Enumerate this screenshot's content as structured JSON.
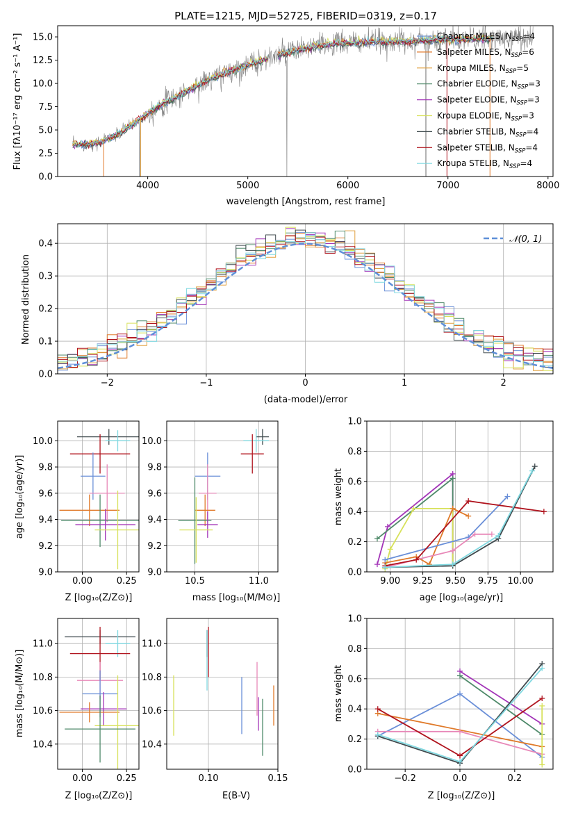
{
  "colors": {
    "chabrier_miles": "#6a8fd8",
    "salpeter_miles": "#e07a2a",
    "kroupa_miles": "#e0a040",
    "chabrier_elodie": "#4f8a6a",
    "salpeter_elodie": "#a335b8",
    "kroupa_elodie": "#d7e15a",
    "chabrier_stelib": "#404b4f",
    "salpeter_stelib": "#b0141e",
    "kroupa_stelib": "#7fd8e0",
    "pink": "#e888b8",
    "data_spectrum": "#808080",
    "normal_curve": "#5e8fd8",
    "grid": "#b0b0b0"
  },
  "series": [
    {
      "key": "chabrier_miles",
      "label": "Chabrier MILES, N",
      "sub": "SSP",
      "suffix": "=4",
      "color": "#6a8fd8"
    },
    {
      "key": "salpeter_miles",
      "label": "Salpeter MILES, N",
      "sub": "SSP",
      "suffix": "=6",
      "color": "#e07a2a"
    },
    {
      "key": "kroupa_miles",
      "label": "Kroupa MILES, N",
      "sub": "SSP",
      "suffix": "=5",
      "color": "#e0a040"
    },
    {
      "key": "chabrier_elodie",
      "label": "Chabrier ELODIE, N",
      "sub": "SSP",
      "suffix": "=3",
      "color": "#4f8a6a"
    },
    {
      "key": "salpeter_elodie",
      "label": "Salpeter ELODIE, N",
      "sub": "SSP",
      "suffix": "=3",
      "color": "#a335b8"
    },
    {
      "key": "kroupa_elodie",
      "label": "Kroupa ELODIE, N",
      "sub": "SSP",
      "suffix": "=3",
      "color": "#d7e15a"
    },
    {
      "key": "chabrier_stelib",
      "label": "Chabrier STELIB, N",
      "sub": "SSP",
      "suffix": "=4",
      "color": "#404b4f"
    },
    {
      "key": "salpeter_stelib",
      "label": "Salpeter STELIB, N",
      "sub": "SSP",
      "suffix": "=4",
      "color": "#b0141e"
    },
    {
      "key": "kroupa_stelib",
      "label": "Kroupa STELIB, N",
      "sub": "SSP",
      "suffix": "=4",
      "color": "#7fd8e0"
    }
  ],
  "chart_data": [
    {
      "id": "spectrum",
      "type": "line",
      "title": "PLATE=1215, MJD=52725, FIBERID=0319, z=0.17",
      "xlabel": "wavelength [Angstrom, rest frame]",
      "ylabel": "Flux [fλ10⁻¹⁷ erg cm⁻² s⁻¹ A⁻¹]",
      "xlim": [
        3100,
        8050
      ],
      "ylim": [
        0,
        16.2
      ],
      "xticks": [
        4000,
        5000,
        6000,
        7000,
        8000
      ],
      "yticks": [
        0.0,
        2.5,
        5.0,
        7.5,
        10.0,
        12.5,
        15.0
      ],
      "continuum": {
        "x": [
          3250,
          3500,
          3700,
          3900,
          4100,
          4300,
          4500,
          4700,
          4900,
          5100,
          5300,
          5500,
          5700,
          5900,
          6100,
          6300,
          6500,
          6700,
          6900,
          7100,
          7300,
          7500,
          7700,
          7850
        ],
        "y": [
          3.4,
          3.6,
          4.5,
          6.0,
          7.5,
          8.6,
          9.8,
          10.8,
          11.6,
          12.3,
          13.0,
          13.6,
          14.0,
          14.3,
          14.4,
          14.5,
          14.5,
          14.6,
          14.7,
          14.7,
          14.8,
          14.8,
          14.9,
          14.9
        ]
      },
      "legend": "upper-right"
    },
    {
      "id": "residuals",
      "type": "histogram",
      "xlabel": "(data-model)/error",
      "ylabel": "Normed distribution",
      "xlim": [
        -2.5,
        2.5
      ],
      "ylim": [
        0,
        0.46
      ],
      "xticks": [
        -2,
        -1,
        0,
        1,
        2
      ],
      "yticks": [
        0.0,
        0.1,
        0.2,
        0.3,
        0.4
      ],
      "normal_label": "𝒩(0, 1)",
      "legend": "upper-right"
    },
    {
      "id": "age_vs_Z",
      "type": "errorbar",
      "xlabel": "Z [log₁₀(Z/Z⊙)]",
      "ylabel": "age  [log₁₀(age/yr)]",
      "xlim": [
        -0.14,
        0.32
      ],
      "ylim": [
        9.0,
        10.15
      ],
      "xticks": [
        0.0,
        0.25
      ],
      "yticks": [
        9.0,
        9.2,
        9.4,
        9.6,
        9.8,
        10.0
      ],
      "points": [
        {
          "x": 0.15,
          "y": 10.03,
          "xerr": 0.18,
          "yerr": 0.06,
          "color": "#404b4f"
        },
        {
          "x": 0.2,
          "y": 10.0,
          "xerr": 0.07,
          "yerr": 0.08,
          "color": "#7fd8e0"
        },
        {
          "x": 0.1,
          "y": 9.9,
          "xerr": 0.17,
          "yerr": 0.15,
          "color": "#b0141e"
        },
        {
          "x": 0.06,
          "y": 9.73,
          "xerr": 0.07,
          "yerr": 0.18,
          "color": "#6a8fd8"
        },
        {
          "x": 0.14,
          "y": 9.6,
          "xerr": 0.1,
          "yerr": 0.22,
          "color": "#e888b8"
        },
        {
          "x": 0.04,
          "y": 9.47,
          "xerr": 0.17,
          "yerr": 0.12,
          "color": "#e07a2a"
        },
        {
          "x": 0.1,
          "y": 9.39,
          "xerr": 0.22,
          "yerr": 0.2,
          "color": "#4f8a6a"
        },
        {
          "x": 0.13,
          "y": 9.36,
          "xerr": 0.17,
          "yerr": 0.12,
          "color": "#a335b8"
        },
        {
          "x": 0.2,
          "y": 9.32,
          "xerr": 0.13,
          "yerr": 0.3,
          "color": "#d7e15a"
        }
      ]
    },
    {
      "id": "age_vs_mass",
      "type": "errorbar",
      "xlabel": "mass [log₁₀(M/M⊙)]",
      "ylabel": "",
      "xlim": [
        10.28,
        11.15
      ],
      "ylim": [
        9.0,
        10.15
      ],
      "xticks": [
        10.5,
        11.0
      ],
      "yticks": [
        9.0,
        9.2,
        9.4,
        9.6,
        9.8,
        10.0
      ],
      "points": [
        {
          "x": 11.03,
          "y": 10.03,
          "xerr": 0.05,
          "yerr": 0.06,
          "color": "#404b4f"
        },
        {
          "x": 10.98,
          "y": 10.0,
          "xerr": 0.1,
          "yerr": 0.09,
          "color": "#7fd8e0"
        },
        {
          "x": 10.95,
          "y": 9.9,
          "xerr": 0.09,
          "yerr": 0.15,
          "color": "#b0141e"
        },
        {
          "x": 10.6,
          "y": 9.73,
          "xerr": 0.1,
          "yerr": 0.18,
          "color": "#6a8fd8"
        },
        {
          "x": 10.6,
          "y": 9.6,
          "xerr": 0.07,
          "yerr": 0.22,
          "color": "#e888b8"
        },
        {
          "x": 10.58,
          "y": 9.47,
          "xerr": 0.08,
          "yerr": 0.12,
          "color": "#e07a2a"
        },
        {
          "x": 10.5,
          "y": 9.39,
          "xerr": 0.13,
          "yerr": 0.33,
          "color": "#4f8a6a"
        },
        {
          "x": 10.6,
          "y": 9.36,
          "xerr": 0.08,
          "yerr": 0.1,
          "color": "#a335b8"
        },
        {
          "x": 10.51,
          "y": 9.32,
          "xerr": 0.13,
          "yerr": 0.25,
          "color": "#d7e15a"
        }
      ]
    },
    {
      "id": "weight_vs_age",
      "type": "line",
      "xlabel": "age  [log₁₀(age/yr)]",
      "ylabel": "mass weight",
      "xlim": [
        8.82,
        10.25
      ],
      "ylim": [
        0,
        1.0
      ],
      "xticks": [
        9.0,
        9.25,
        9.5,
        9.75,
        10.0
      ],
      "yticks": [
        0.0,
        0.2,
        0.4,
        0.6,
        0.8,
        1.0
      ],
      "series": [
        {
          "color": "#a335b8",
          "x": [
            8.9,
            8.98,
            9.48,
            9.48
          ],
          "y": [
            0.05,
            0.3,
            0.65,
            0.05
          ]
        },
        {
          "color": "#4f8a6a",
          "x": [
            8.9,
            9.48,
            9.48,
            9.48
          ],
          "y": [
            0.22,
            0.62,
            0.04,
            0.04
          ]
        },
        {
          "color": "#d7e15a",
          "x": [
            8.96,
            9.0,
            9.18,
            9.48,
            9.48
          ],
          "y": [
            0.02,
            0.15,
            0.42,
            0.42,
            0.04
          ]
        },
        {
          "color": "#e07a2a",
          "x": [
            8.96,
            9.2,
            9.3,
            9.48,
            9.6
          ],
          "y": [
            0.06,
            0.1,
            0.05,
            0.42,
            0.37
          ]
        },
        {
          "color": "#6a8fd8",
          "x": [
            8.96,
            9.6,
            9.9
          ],
          "y": [
            0.08,
            0.23,
            0.5
          ]
        },
        {
          "color": "#e888b8",
          "x": [
            8.96,
            9.48,
            9.65,
            9.78
          ],
          "y": [
            0.03,
            0.14,
            0.25,
            0.25
          ]
        },
        {
          "color": "#b0141e",
          "x": [
            8.96,
            9.2,
            9.6,
            10.18
          ],
          "y": [
            0.04,
            0.08,
            0.47,
            0.4
          ]
        },
        {
          "color": "#404b4f",
          "x": [
            8.96,
            9.48,
            9.83,
            10.11
          ],
          "y": [
            0.03,
            0.04,
            0.22,
            0.7
          ]
        },
        {
          "color": "#7fd8e0",
          "x": [
            8.96,
            9.48,
            9.83,
            10.09
          ],
          "y": [
            0.03,
            0.05,
            0.24,
            0.67
          ]
        }
      ]
    },
    {
      "id": "mass_vs_Z",
      "type": "errorbar",
      "xlabel": "Z [log₁₀(Z/Z⊙)]",
      "ylabel": "mass [log₁₀(M/M⊙)]",
      "xlim": [
        -0.14,
        0.32
      ],
      "ylim": [
        10.25,
        11.15
      ],
      "xticks": [
        0.0,
        0.25
      ],
      "yticks": [
        10.4,
        10.6,
        10.8,
        11.0
      ],
      "points": [
        {
          "x": 0.1,
          "y": 11.04,
          "xerr": 0.2,
          "yerr": 0.04,
          "color": "#404b4f"
        },
        {
          "x": 0.2,
          "y": 11.0,
          "xerr": 0.07,
          "yerr": 0.08,
          "color": "#7fd8e0"
        },
        {
          "x": 0.1,
          "y": 10.94,
          "xerr": 0.17,
          "yerr": 0.16,
          "color": "#b0141e"
        },
        {
          "x": 0.1,
          "y": 10.78,
          "xerr": 0.13,
          "yerr": 0.11,
          "color": "#e888b8"
        },
        {
          "x": 0.1,
          "y": 10.7,
          "xerr": 0.1,
          "yerr": 0.14,
          "color": "#6a8fd8"
        },
        {
          "x": 0.12,
          "y": 10.61,
          "xerr": 0.13,
          "yerr": 0.1,
          "color": "#a335b8"
        },
        {
          "x": 0.04,
          "y": 10.59,
          "xerr": 0.17,
          "yerr": 0.06,
          "color": "#e07a2a"
        },
        {
          "x": 0.2,
          "y": 10.51,
          "xerr": 0.13,
          "yerr": 0.3,
          "color": "#d7e15a"
        },
        {
          "x": 0.1,
          "y": 10.49,
          "xerr": 0.2,
          "yerr": 0.2,
          "color": "#4f8a6a"
        }
      ]
    },
    {
      "id": "mass_vs_ebv",
      "type": "errorbar",
      "xlabel": "E(B-V)",
      "ylabel": "",
      "xlim": [
        0.07,
        0.15
      ],
      "ylim": [
        10.25,
        11.15
      ],
      "xticks": [
        0.1,
        0.15
      ],
      "yticks": [
        10.4,
        10.6,
        10.8,
        11.0
      ],
      "points": [
        {
          "x": 0.099,
          "y": 11.0,
          "xerr": 0.0,
          "yerr": 0.08,
          "color": "#404b4f"
        },
        {
          "x": 0.1,
          "y": 10.95,
          "xerr": 0.0,
          "yerr": 0.15,
          "color": "#b0141e"
        },
        {
          "x": 0.099,
          "y": 10.9,
          "xerr": 0.0,
          "yerr": 0.18,
          "color": "#7fd8e0"
        },
        {
          "x": 0.075,
          "y": 10.63,
          "xerr": 0.0,
          "yerr": 0.18,
          "color": "#d7e15a"
        },
        {
          "x": 0.124,
          "y": 10.63,
          "xerr": 0.0,
          "yerr": 0.17,
          "color": "#6a8fd8"
        },
        {
          "x": 0.135,
          "y": 10.73,
          "xerr": 0.0,
          "yerr": 0.16,
          "color": "#e888b8"
        },
        {
          "x": 0.136,
          "y": 10.58,
          "xerr": 0.0,
          "yerr": 0.1,
          "color": "#a335b8"
        },
        {
          "x": 0.139,
          "y": 10.5,
          "xerr": 0.0,
          "yerr": 0.17,
          "color": "#4f8a6a"
        },
        {
          "x": 0.147,
          "y": 10.63,
          "xerr": 0.0,
          "yerr": 0.12,
          "color": "#e07a2a"
        }
      ]
    },
    {
      "id": "weight_vs_Z",
      "type": "line",
      "xlabel": "Z [log₁₀(Z/Z⊙)]",
      "ylabel": "mass weight",
      "xlim": [
        -0.34,
        0.34
      ],
      "ylim": [
        0,
        1.0
      ],
      "xticks": [
        -0.2,
        0.0,
        0.2
      ],
      "yticks": [
        0.0,
        0.2,
        0.4,
        0.6,
        0.8,
        1.0
      ],
      "series": [
        {
          "color": "#a335b8",
          "x": [
            0.0,
            0.3
          ],
          "y": [
            0.65,
            0.3
          ]
        },
        {
          "color": "#4f8a6a",
          "x": [
            0.0,
            0.3
          ],
          "y": [
            0.62,
            0.23
          ]
        },
        {
          "color": "#6a8fd8",
          "x": [
            -0.3,
            0.0,
            0.3
          ],
          "y": [
            0.22,
            0.5,
            0.08
          ]
        },
        {
          "color": "#e07a2a",
          "x": [
            -0.3,
            0.3
          ],
          "y": [
            0.37,
            0.15
          ]
        },
        {
          "color": "#e888b8",
          "x": [
            -0.3,
            0.0,
            0.3
          ],
          "y": [
            0.25,
            0.25,
            0.1
          ]
        },
        {
          "color": "#b0141e",
          "x": [
            -0.3,
            0.0,
            0.3
          ],
          "y": [
            0.4,
            0.09,
            0.47
          ]
        },
        {
          "color": "#404b4f",
          "x": [
            -0.3,
            0.0,
            0.3
          ],
          "y": [
            0.22,
            0.04,
            0.7
          ]
        },
        {
          "color": "#7fd8e0",
          "x": [
            -0.3,
            0.0,
            0.3
          ],
          "y": [
            0.23,
            0.05,
            0.67
          ]
        },
        {
          "color": "#d7e15a",
          "x": [
            0.3,
            0.3
          ],
          "y": [
            0.42,
            0.03
          ]
        }
      ]
    }
  ]
}
